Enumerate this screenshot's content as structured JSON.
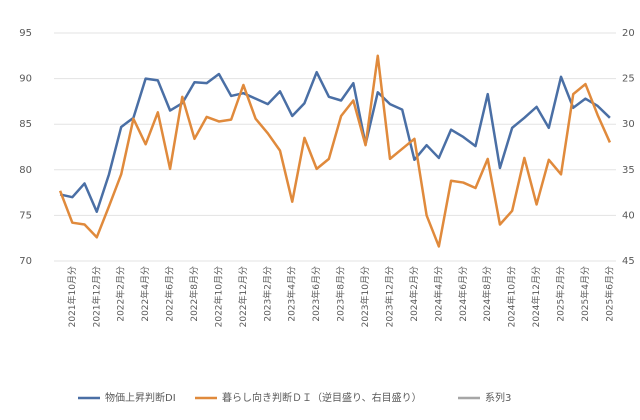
{
  "chart_data": {
    "type": "line",
    "categories": [
      null,
      "2021年10月分",
      null,
      "2021年12月分",
      null,
      "2022年2月分",
      null,
      "2022年4月分",
      null,
      "2022年6月分",
      null,
      "2022年8月分",
      null,
      "2022年10月分",
      null,
      "2022年12月分",
      null,
      "2023年2月分",
      null,
      "2023年4月分",
      null,
      "2023年6月分",
      null,
      "2023年8月分",
      null,
      "2023年10月分",
      null,
      "2023年12月分",
      null,
      "2024年2月分",
      null,
      "2024年4月分",
      null,
      "2024年6月分",
      null,
      "2024年8月分",
      null,
      "2024年10月分",
      null,
      "2024年12月分",
      null,
      "2025年2月分",
      null,
      "2025年4月分",
      null,
      "2025年6月分"
    ],
    "series": [
      {
        "name": "物価上昇判断DI",
        "color": "#4a6fa5",
        "values": [
          77.3,
          77.0,
          78.5,
          75.4,
          79.5,
          84.7,
          85.7,
          90.0,
          89.8,
          86.5,
          87.3,
          89.6,
          89.5,
          90.5,
          88.1,
          88.4,
          87.8,
          87.2,
          88.6,
          85.9,
          87.3,
          90.7,
          88.0,
          87.6,
          89.5,
          82.8,
          88.5,
          87.2,
          86.6,
          81.1,
          82.7,
          81.3,
          84.4,
          83.6,
          82.6,
          88.3,
          80.2,
          84.6,
          85.7,
          86.9,
          84.6,
          90.2,
          86.8,
          87.8,
          87.0,
          85.7
        ]
      },
      {
        "name": "暮らし向き判断ＤＩ（逆目盛り、右目盛り）",
        "color": "#e08a3c",
        "axis": "y2",
        "values": [
          37.3,
          40.8,
          41.0,
          42.4,
          39.0,
          35.5,
          29.4,
          32.2,
          28.7,
          34.9,
          27.0,
          31.6,
          29.2,
          29.7,
          29.5,
          25.7,
          29.4,
          31.0,
          32.9,
          38.5,
          31.5,
          34.9,
          33.8,
          29.1,
          27.4,
          32.3,
          22.5,
          33.8,
          32.7,
          31.6,
          40.0,
          43.4,
          36.2,
          36.4,
          37.0,
          33.8,
          41.0,
          39.5,
          33.7,
          38.8,
          33.9,
          35.5,
          26.7,
          25.6,
          29.0,
          32.0
        ]
      },
      {
        "name": "系列3",
        "color": "#a6a6a6"
      }
    ],
    "ylim": [
      70,
      95
    ],
    "yticks": [
      70,
      75,
      80,
      85,
      90,
      95
    ],
    "y2lim": [
      45,
      20
    ],
    "y2ticks": [
      20,
      25,
      30,
      35,
      40,
      45
    ],
    "grid": true,
    "legend": "bottom"
  }
}
